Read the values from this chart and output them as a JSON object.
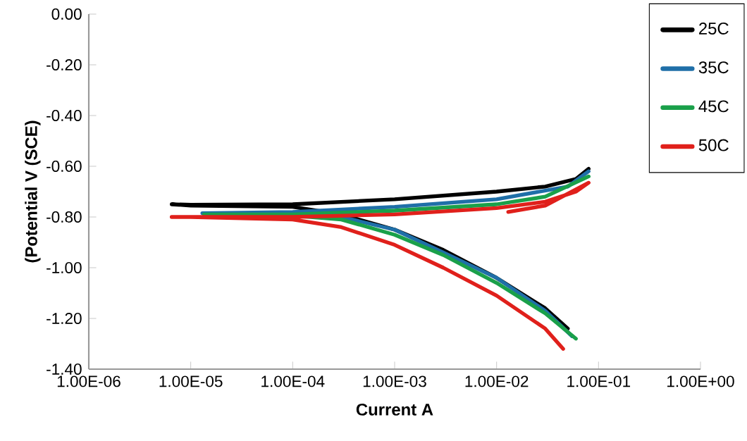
{
  "chart_data": {
    "type": "line",
    "xlabel": "Current A",
    "ylabel": "(Potential V (SCE)",
    "log": "x",
    "legend": "top right",
    "line_style": "solid",
    "grid": false,
    "xlim": [
      1e-06,
      1
    ],
    "ylim": [
      -1.4,
      0
    ],
    "xticks": [
      {
        "value": 1e-06,
        "label": "1.00E-06"
      },
      {
        "value": 1e-05,
        "label": "1.00E-05"
      },
      {
        "value": 0.0001,
        "label": "1.00E-04"
      },
      {
        "value": 0.001,
        "label": "1.00E-03"
      },
      {
        "value": 0.01,
        "label": "1.00E-02"
      },
      {
        "value": 0.1,
        "label": "1.00E-01"
      },
      {
        "value": 1,
        "label": "1.00E+00"
      }
    ],
    "yticks": [
      {
        "value": 0,
        "label": "0.00"
      },
      {
        "value": -0.2,
        "label": "-0.20"
      },
      {
        "value": -0.4,
        "label": "-0.40"
      },
      {
        "value": -0.6,
        "label": "-0.60"
      },
      {
        "value": -0.8,
        "label": "-0.80"
      },
      {
        "value": -1.0,
        "label": "-1.00"
      },
      {
        "value": -1.2,
        "label": "-1.20"
      },
      {
        "value": -1.4,
        "label": "-1.40"
      }
    ],
    "series": [
      {
        "name": "25C",
        "color": "#000000",
        "x": [
          0.05,
          0.03,
          0.01,
          0.003,
          0.001,
          0.0003,
          0.0001,
          1e-05,
          6.5e-06,
          1e-05,
          0.0001,
          0.001,
          0.01,
          0.03,
          0.06,
          0.08
        ],
        "values": [
          -1.24,
          -1.16,
          -1.04,
          -0.93,
          -0.85,
          -0.79,
          -0.76,
          -0.755,
          -0.75,
          -0.752,
          -0.75,
          -0.73,
          -0.7,
          -0.68,
          -0.65,
          -0.61
        ]
      },
      {
        "name": "35C",
        "color": "#1f6fa8",
        "x": [
          0.055,
          0.03,
          0.01,
          0.003,
          0.001,
          0.0003,
          0.0001,
          1.3e-05,
          0.0001,
          0.001,
          0.01,
          0.05,
          0.08
        ],
        "values": [
          -1.27,
          -1.17,
          -1.04,
          -0.94,
          -0.85,
          -0.8,
          -0.785,
          -0.785,
          -0.78,
          -0.76,
          -0.73,
          -0.68,
          -0.62
        ]
      },
      {
        "name": "45C",
        "color": "#1aa04a",
        "x": [
          0.06,
          0.03,
          0.01,
          0.003,
          0.001,
          0.0003,
          0.0001,
          1.35e-05,
          0.0001,
          0.001,
          0.01,
          0.03,
          0.08
        ],
        "values": [
          -1.28,
          -1.18,
          -1.06,
          -0.95,
          -0.87,
          -0.81,
          -0.795,
          -0.79,
          -0.79,
          -0.775,
          -0.75,
          -0.72,
          -0.64
        ]
      },
      {
        "name": "50C",
        "color": "#e0201b",
        "x": [
          0.045,
          0.03,
          0.01,
          0.003,
          0.001,
          0.0003,
          0.0001,
          1e-05,
          6.5e-06,
          0.0001,
          0.001,
          0.01,
          0.03,
          0.06,
          0.08,
          0.03,
          0.013
        ],
        "values": [
          -1.32,
          -1.24,
          -1.11,
          -1.0,
          -0.91,
          -0.84,
          -0.81,
          -0.8,
          -0.8,
          -0.8,
          -0.79,
          -0.765,
          -0.74,
          -0.7,
          -0.665,
          -0.755,
          -0.78
        ]
      }
    ]
  }
}
